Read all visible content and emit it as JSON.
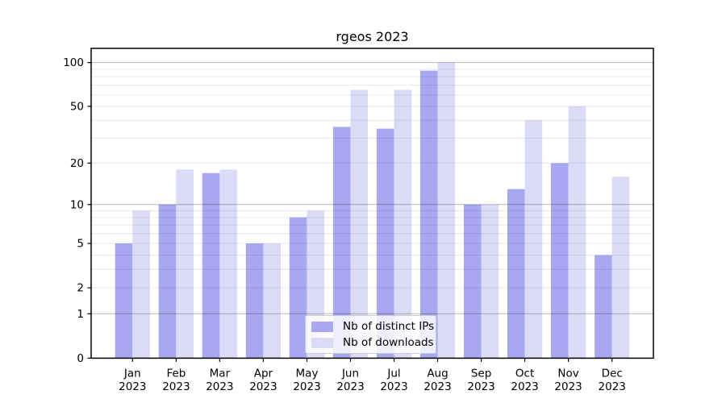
{
  "title": "rgeos 2023",
  "chart_data": {
    "type": "bar",
    "title": "rgeos 2023",
    "categories": [
      "Jan 2023",
      "Feb 2023",
      "Mar 2023",
      "Apr 2023",
      "May 2023",
      "Jun 2023",
      "Jul 2023",
      "Aug 2023",
      "Sep 2023",
      "Oct 2023",
      "Nov 2023",
      "Dec 2023"
    ],
    "month_labels": [
      "Jan",
      "Feb",
      "Mar",
      "Apr",
      "May",
      "Jun",
      "Jul",
      "Aug",
      "Sep",
      "Oct",
      "Nov",
      "Dec"
    ],
    "year_label": "2023",
    "series": [
      {
        "name": "Nb of distinct IPs",
        "color": "#a8a8f0",
        "values": [
          5,
          10,
          17,
          5,
          8,
          36,
          35,
          88,
          10,
          13,
          20,
          4
        ]
      },
      {
        "name": "Nb of downloads",
        "color": "#dbdbf8",
        "values": [
          9,
          18,
          18,
          5,
          9,
          65,
          65,
          100,
          10,
          40,
          50,
          16
        ]
      }
    ],
    "yscale": "log1p",
    "ylim": [
      0,
      125
    ],
    "yticks": [
      0,
      1,
      2,
      5,
      10,
      20,
      50,
      100
    ],
    "grid_major": [
      1,
      10,
      100
    ],
    "grid_minor": [
      2,
      3,
      4,
      5,
      6,
      7,
      8,
      9,
      20,
      30,
      40,
      50,
      60,
      70,
      80,
      90
    ],
    "legend_position": "inside-bottom-center",
    "xlabel": "",
    "ylabel": ""
  },
  "colors": {
    "background": "#ffffff",
    "bar_distinct_ips": "#a8a8f0",
    "bar_downloads": "#dbdbf8",
    "grid_major": "rgba(0,0,0,0.28)",
    "grid_minor": "rgba(0,0,0,0.085)",
    "axis": "#000000",
    "legend_border": "#cccccc",
    "text": "#000000"
  }
}
